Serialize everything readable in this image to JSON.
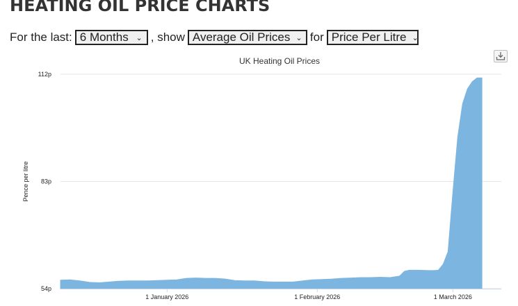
{
  "header": {
    "title": "HEATING OIL PRICE CHARTS"
  },
  "controls": {
    "prefix": "For the last:",
    "period": "6 Months",
    "show_label": ", show",
    "show": "Average Oil Prices",
    "for_label": "for",
    "unit": "Price Per Litre"
  },
  "icons": {
    "export": "download-icon"
  },
  "chart_data": {
    "type": "area",
    "title": "UK Heating Oil Prices",
    "ylabel": "Pence per litre",
    "xlabel": "",
    "ylim": [
      54,
      112
    ],
    "yticks": [
      {
        "value": 54,
        "label": "54p"
      },
      {
        "value": 83,
        "label": "83p"
      },
      {
        "value": 112,
        "label": "112p"
      }
    ],
    "xlim": [
      "2025-12-10",
      "2026-03-11"
    ],
    "xticks": [
      {
        "x": "2026-01-01",
        "label": "1 January 2026"
      },
      {
        "x": "2026-02-01",
        "label": "1 February 2026"
      },
      {
        "x": "2026-03-01",
        "label": "1 March 2026"
      }
    ],
    "grid": true,
    "color": "#7cb5e0",
    "series": [
      {
        "name": "",
        "x": [
          "2025-12-10",
          "2025-12-12",
          "2025-12-14",
          "2025-12-16",
          "2025-12-18",
          "2025-12-20",
          "2025-12-22",
          "2025-12-24",
          "2025-12-26",
          "2025-12-28",
          "2025-12-30",
          "2026-01-01",
          "2026-01-03",
          "2026-01-05",
          "2026-01-07",
          "2026-01-09",
          "2026-01-11",
          "2026-01-13",
          "2026-01-15",
          "2026-01-17",
          "2026-01-19",
          "2026-01-21",
          "2026-01-23",
          "2026-01-25",
          "2026-01-27",
          "2026-01-29",
          "2026-01-31",
          "2026-02-02",
          "2026-02-04",
          "2026-02-06",
          "2026-02-08",
          "2026-02-10",
          "2026-02-12",
          "2026-02-14",
          "2026-02-16",
          "2026-02-18",
          "2026-02-19",
          "2026-02-20",
          "2026-02-22",
          "2026-02-24",
          "2026-02-25",
          "2026-02-26",
          "2026-02-27",
          "2026-02-28",
          "2026-03-01",
          "2026-03-02",
          "2026-03-03",
          "2026-03-04",
          "2026-03-05",
          "2026-03-06",
          "2026-03-07"
        ],
        "values": [
          56.3,
          56.4,
          56.1,
          55.7,
          55.6,
          55.8,
          56.0,
          56.1,
          56.1,
          56.1,
          56.2,
          56.3,
          56.4,
          56.8,
          56.9,
          56.8,
          56.8,
          56.6,
          56.2,
          56.1,
          56.1,
          55.9,
          55.8,
          55.8,
          55.8,
          56.1,
          56.4,
          56.5,
          56.6,
          56.8,
          56.9,
          57.0,
          57.0,
          57.1,
          57.0,
          57.4,
          58.7,
          59.0,
          59.0,
          58.9,
          58.9,
          59.0,
          60.6,
          64.0,
          80.0,
          95.0,
          104.0,
          108.0,
          110.0,
          111.0,
          111.0
        ]
      }
    ]
  }
}
